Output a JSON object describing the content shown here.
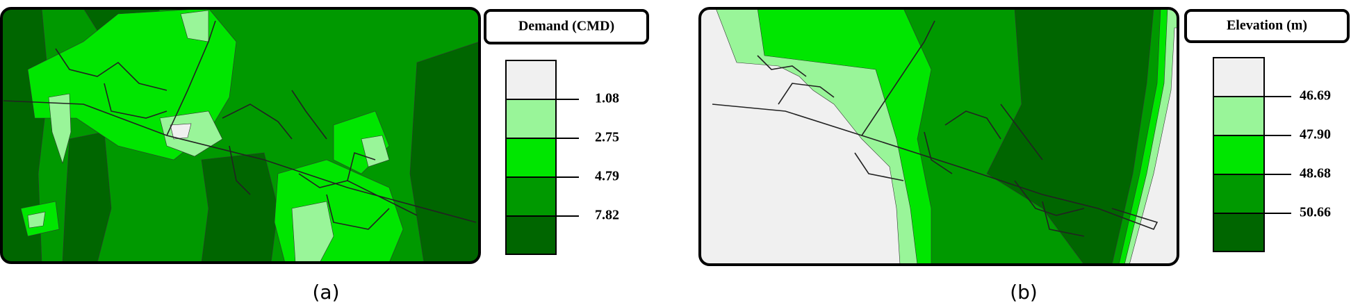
{
  "panels": [
    {
      "legend": {
        "title": "Demand (CMD)",
        "breaks": [
          "1.08",
          "2.75",
          "4.79",
          "7.82"
        ]
      },
      "caption": "(a)"
    },
    {
      "legend": {
        "title": "Elevation (m)",
        "breaks": [
          "46.69",
          "47.90",
          "48.68",
          "50.66"
        ]
      },
      "caption": "(b)"
    }
  ]
}
